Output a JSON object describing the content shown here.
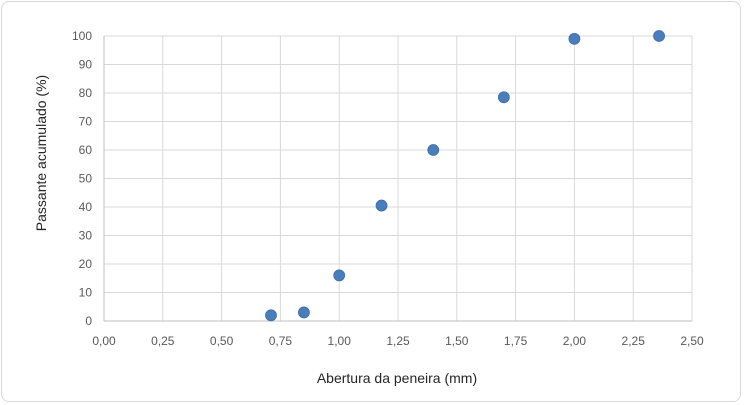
{
  "chart_data": {
    "type": "scatter",
    "title": "",
    "xlabel": "Abertura da peneira (mm)",
    "ylabel": "Passante acumulado (%)",
    "xlim": [
      0,
      2.5
    ],
    "ylim": [
      0,
      100
    ],
    "x_ticks": [
      "0,00",
      "0,25",
      "0,50",
      "0,75",
      "1,00",
      "1,25",
      "1,50",
      "1,75",
      "2,00",
      "2,25",
      "2,50"
    ],
    "y_ticks": [
      "0",
      "10",
      "20",
      "30",
      "40",
      "50",
      "60",
      "70",
      "80",
      "90",
      "100"
    ],
    "grid": true,
    "legend": "none",
    "marker_color": "#4a7ebb",
    "points": [
      {
        "x": 0.71,
        "y": 2
      },
      {
        "x": 0.85,
        "y": 3
      },
      {
        "x": 1.0,
        "y": 16
      },
      {
        "x": 1.18,
        "y": 40.5
      },
      {
        "x": 1.4,
        "y": 60
      },
      {
        "x": 1.7,
        "y": 78.5
      },
      {
        "x": 2.0,
        "y": 99
      },
      {
        "x": 2.36,
        "y": 100
      }
    ]
  }
}
